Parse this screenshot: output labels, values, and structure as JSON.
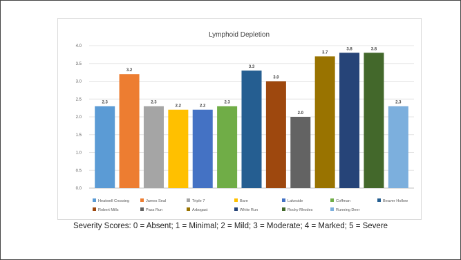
{
  "slide": {
    "footnote": "Severity Scores: 0 = Absent; 1 = Minimal; 2 = Mild; 3 = Moderate; 4 = Marked; 5 = Severe"
  },
  "chart_data": {
    "type": "bar",
    "title": "Lymphoid Depletion",
    "xlabel": "",
    "ylabel": "",
    "ylim": [
      0,
      4.0
    ],
    "yticks": [
      "0.0",
      "0.5",
      "1.0",
      "1.5",
      "2.0",
      "2.5",
      "3.0",
      "3.5",
      "4.0"
    ],
    "grid": true,
    "legend_position": "bottom",
    "series": [
      {
        "name": "Heatwell Crossing",
        "value": 2.3,
        "label": "2.3",
        "color": "#5B9BD5"
      },
      {
        "name": "James Seal",
        "value": 3.2,
        "label": "3.2",
        "color": "#ED7D31"
      },
      {
        "name": "Triple 7",
        "value": 2.3,
        "label": "2.3",
        "color": "#A5A5A5"
      },
      {
        "name": "Bare",
        "value": 2.2,
        "label": "2.2",
        "color": "#FFC000"
      },
      {
        "name": "Lakeside",
        "value": 2.2,
        "label": "2.2",
        "color": "#4472C4"
      },
      {
        "name": "Coffman",
        "value": 2.3,
        "label": "2.3",
        "color": "#70AD47"
      },
      {
        "name": "Beaver Hollow",
        "value": 3.3,
        "label": "3.3",
        "color": "#255E91"
      },
      {
        "name": "Robert Mills",
        "value": 3.0,
        "label": "3.0",
        "color": "#9E480E"
      },
      {
        "name": "Pass Run",
        "value": 2.0,
        "label": "2.0",
        "color": "#636363"
      },
      {
        "name": "Arbogast",
        "value": 3.7,
        "label": "3.7",
        "color": "#997300"
      },
      {
        "name": "White Run",
        "value": 3.8,
        "label": "3.8",
        "color": "#264478"
      },
      {
        "name": "Rocky Rhodes",
        "value": 3.8,
        "label": "3.8",
        "color": "#43682B"
      },
      {
        "name": "Running Deer",
        "value": 2.3,
        "label": "2.3",
        "color": "#7CAFDD"
      }
    ]
  }
}
